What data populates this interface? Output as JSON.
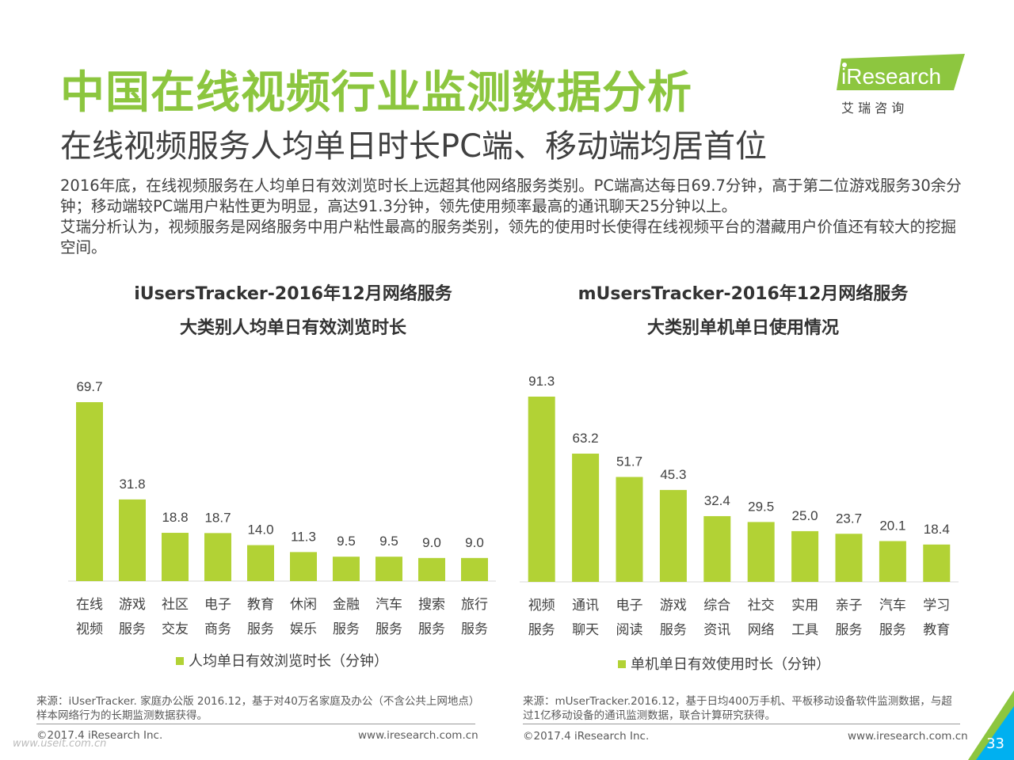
{
  "header": {
    "title": "中国在线视频行业监测数据分析",
    "subtitle": "在线视频服务人均单日时长PC端、移动端均居首位",
    "body": [
      "2016年底，在线视频服务在人均单日有效浏览时长上远超其他网络服务类别。PC端高达每日69.7分钟，高于第二位游戏服务30余分钟；移动端较PC端用户粘性更为明显，高达91.3分钟，领先使用频率最高的通讯聊天25分钟以上。",
      "艾瑞分析认为，视频服务是网络服务中用户粘性最高的服务类别，领先的使用时长使得在线视频平台的潜藏用户价值还有较大的挖掘空间。"
    ]
  },
  "logo": {
    "brand": "iResearch",
    "cn": "艾 瑞 咨 询"
  },
  "colors": {
    "title_green": "#8cc63f",
    "bar_green": "#b2d235",
    "logo_green": "#8dc63f",
    "corner_blue": "#00b0f0"
  },
  "chart_data": [
    {
      "type": "bar",
      "title_line1": "iUsersTracker-2016年12月网络服务",
      "title_line2": "大类别人均单日有效浏览时长",
      "categories": [
        [
          "在线",
          "视频"
        ],
        [
          "游戏",
          "服务"
        ],
        [
          "社区",
          "交友"
        ],
        [
          "电子",
          "商务"
        ],
        [
          "教育",
          "服务"
        ],
        [
          "休闲",
          "娱乐"
        ],
        [
          "金融",
          "服务"
        ],
        [
          "汽车",
          "服务"
        ],
        [
          "搜索",
          "服务"
        ],
        [
          "旅行",
          "服务"
        ]
      ],
      "series": [
        {
          "name": "人均单日有效浏览时长（分钟）",
          "values": [
            69.7,
            31.8,
            18.8,
            18.7,
            14.0,
            11.3,
            9.5,
            9.5,
            9.0,
            9.0
          ]
        }
      ],
      "value_labels": [
        "69.7",
        "31.8",
        "18.8",
        "18.7",
        "14.0",
        "11.3",
        "9.5",
        "9.5",
        "9.0",
        "9.0"
      ],
      "legend": "bottom"
    },
    {
      "type": "bar",
      "title_line1": "mUsersTracker-2016年12月网络服务",
      "title_line2": "大类别单机单日使用情况",
      "categories": [
        [
          "视频",
          "服务"
        ],
        [
          "通讯",
          "聊天"
        ],
        [
          "电子",
          "阅读"
        ],
        [
          "游戏",
          "服务"
        ],
        [
          "综合",
          "资讯"
        ],
        [
          "社交",
          "网络"
        ],
        [
          "实用",
          "工具"
        ],
        [
          "亲子",
          "服务"
        ],
        [
          "汽车",
          "服务"
        ],
        [
          "学习",
          "教育"
        ]
      ],
      "series": [
        {
          "name": "单机单日有效使用时长（分钟）",
          "values": [
            91.3,
            63.2,
            51.7,
            45.3,
            32.4,
            29.5,
            25.0,
            23.7,
            20.1,
            18.4
          ]
        }
      ],
      "value_labels": [
        "91.3",
        "63.2",
        "51.7",
        "45.3",
        "32.4",
        "29.5",
        "25.0",
        "23.7",
        "20.1",
        "18.4"
      ],
      "legend": "bottom"
    }
  ],
  "sources": {
    "left": "来源：iUserTracker. 家庭办公版 2016.12，基于对40万名家庭及办公（不含公共上网地点）样本网络行为的长期监测数据获得。",
    "right": "来源：mUserTracker.2016.12，基于日均400万手机、平板移动设备软件监测数据，与超过1亿移动设备的通讯监测数据，联合计算研究获得。"
  },
  "footer": {
    "copyright_left": "©2017.4 iResearch Inc.",
    "url_left": "www.iresearch.com.cn",
    "copyright_right": "©2017.4 iResearch Inc.",
    "url_right": "www.iresearch.com.cn",
    "watermark": "www.useit.com.cn",
    "page_number": "33"
  }
}
